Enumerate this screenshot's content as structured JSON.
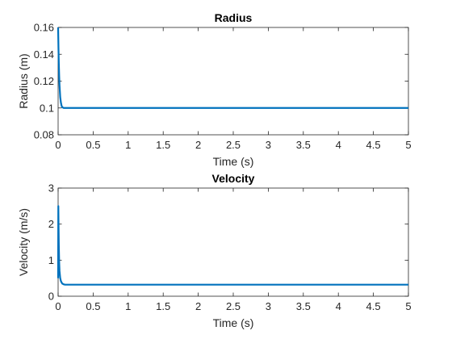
{
  "chart_data": [
    {
      "type": "line",
      "title": "Radius",
      "xlabel": "Time (s)",
      "ylabel": "Radius (m)",
      "xlim": [
        0,
        5
      ],
      "ylim": [
        0.08,
        0.16
      ],
      "xticks": [
        0,
        0.5,
        1,
        1.5,
        2,
        2.5,
        3,
        3.5,
        4,
        4.5,
        5
      ],
      "xtick_labels": [
        "0",
        "0.5",
        "1",
        "1.5",
        "2",
        "2.5",
        "3",
        "3.5",
        "4",
        "4.5",
        "5"
      ],
      "yticks": [
        0.08,
        0.1,
        0.12,
        0.14,
        0.16
      ],
      "ytick_labels": [
        "0.08",
        "0.1",
        "0.12",
        "0.14",
        "0.16"
      ],
      "grid": false,
      "color": "#0072BD",
      "series": [
        {
          "x": [
            0,
            0.005,
            0.01,
            0.015,
            0.02,
            0.03,
            0.04,
            0.05,
            0.06,
            0.08,
            0.1,
            0.15,
            0.2,
            0.5,
            1,
            2,
            3,
            4,
            5
          ],
          "y": [
            0.16,
            0.145,
            0.133,
            0.124,
            0.117,
            0.108,
            0.104,
            0.1015,
            0.1005,
            0.1,
            0.1,
            0.1,
            0.1,
            0.1,
            0.1,
            0.1,
            0.1,
            0.1,
            0.1
          ]
        }
      ]
    },
    {
      "type": "line",
      "title": "Velocity",
      "xlabel": "Time (s)",
      "ylabel": "Velocity (m/s)",
      "xlim": [
        0,
        5
      ],
      "ylim": [
        0,
        3
      ],
      "xticks": [
        0,
        0.5,
        1,
        1.5,
        2,
        2.5,
        3,
        3.5,
        4,
        4.5,
        5
      ],
      "xtick_labels": [
        "0",
        "0.5",
        "1",
        "1.5",
        "2",
        "2.5",
        "3",
        "3.5",
        "4",
        "4.5",
        "5"
      ],
      "yticks": [
        0,
        1,
        2,
        3
      ],
      "ytick_labels": [
        "0",
        "1",
        "2",
        "3"
      ],
      "grid": false,
      "color": "#0072BD",
      "series": [
        {
          "x": [
            0,
            0.003,
            0.006,
            0.01,
            0.015,
            0.02,
            0.03,
            0.04,
            0.05,
            0.06,
            0.08,
            0.1,
            0.2,
            0.5,
            1,
            2,
            3,
            4,
            5
          ],
          "y": [
            0.5,
            2.5,
            2.0,
            1.4,
            0.95,
            0.7,
            0.5,
            0.42,
            0.38,
            0.35,
            0.33,
            0.32,
            0.32,
            0.32,
            0.32,
            0.32,
            0.32,
            0.32,
            0.32
          ]
        }
      ]
    }
  ]
}
